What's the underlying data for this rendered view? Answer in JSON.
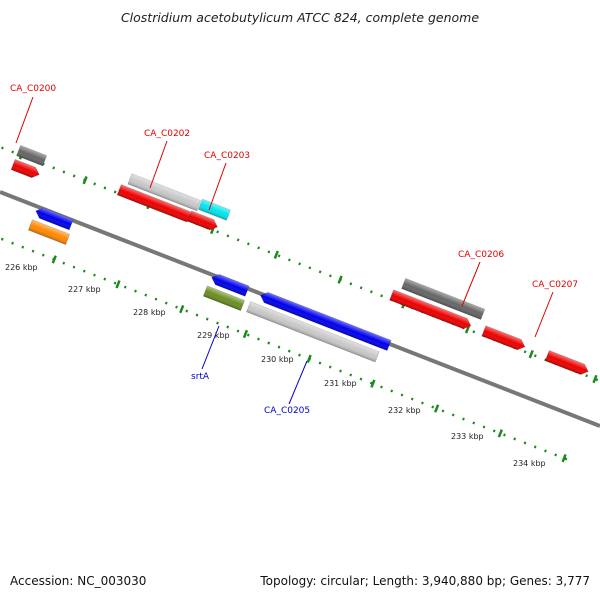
{
  "header": {
    "title": "Clostridium acetobutylicum ATCC 824, complete genome"
  },
  "footer": {
    "accession": "Accession: NC_003030",
    "stats": "Topology: circular; Length: 3,940,880 bp; Genes: 3,777"
  },
  "colors": {
    "backbone": "#777777",
    "tick": "#1a8a1a",
    "forward_label": "#e00000",
    "reverse_label": "#0000cc",
    "red": "#ee0000",
    "blue": "#0000ee",
    "gray": "#666666",
    "lightgray": "#c8c8c8",
    "cyan": "#00e5ee",
    "orange": "#ff8800",
    "olive": "#6b8e23"
  },
  "ticks": [
    "226 kbp",
    "227 kbp",
    "228 kbp",
    "229 kbp",
    "230 kbp",
    "231 kbp",
    "232 kbp",
    "233 kbp",
    "234 kbp"
  ],
  "labels": {
    "ca_c0200": "CA_C0200",
    "ca_c0202": "CA_C0202",
    "ca_c0203": "CA_C0203",
    "ca_c0206": "CA_C0206",
    "ca_c0207": "CA_C0207",
    "srta": "srtA",
    "ca_c0205": "CA_C0205"
  }
}
